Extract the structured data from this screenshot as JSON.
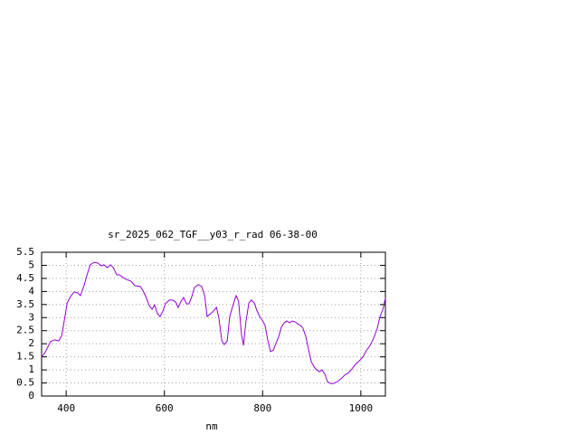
{
  "chart_data": {
    "type": "line",
    "title": "sr_2025_062_TGF__y03_r_rad 06-38-00",
    "x_label": "nm",
    "x": [
      350,
      357,
      368,
      376,
      385,
      391,
      396,
      402,
      409,
      416,
      424,
      429,
      437,
      442,
      449,
      457,
      464,
      472,
      477,
      484,
      490,
      496,
      503,
      508,
      516,
      523,
      532,
      540,
      551,
      556,
      562,
      569,
      575,
      580,
      586,
      591,
      597,
      602,
      610,
      617,
      623,
      628,
      634,
      639,
      645,
      650,
      656,
      661,
      669,
      676,
      682,
      687,
      694,
      700,
      706,
      711,
      717,
      722,
      728,
      733,
      741,
      746,
      751,
      757,
      761,
      766,
      772,
      777,
      783,
      788,
      794,
      799,
      805,
      810,
      816,
      822,
      827,
      833,
      838,
      844,
      849,
      855,
      860,
      866,
      871,
      877,
      882,
      888,
      893,
      899,
      905,
      910,
      916,
      921,
      927,
      932,
      938,
      945,
      952,
      960,
      967,
      974,
      982,
      989,
      997,
      1004,
      1011,
      1019,
      1026,
      1033,
      1039,
      1045,
      1050
    ],
    "series": [
      {
        "color": "#9400d3",
        "values": [
          1.49,
          1.66,
          2.08,
          2.15,
          2.11,
          2.32,
          2.87,
          3.56,
          3.81,
          3.98,
          3.94,
          3.84,
          4.26,
          4.6,
          5.02,
          5.12,
          5.09,
          4.98,
          5.02,
          4.91,
          5.02,
          4.91,
          4.64,
          4.64,
          4.53,
          4.46,
          4.39,
          4.22,
          4.19,
          4.05,
          3.81,
          3.46,
          3.32,
          3.49,
          3.15,
          3.04,
          3.25,
          3.53,
          3.67,
          3.67,
          3.6,
          3.39,
          3.63,
          3.77,
          3.53,
          3.53,
          3.81,
          4.15,
          4.26,
          4.19,
          3.84,
          3.04,
          3.15,
          3.25,
          3.39,
          2.98,
          2.11,
          1.97,
          2.11,
          3.04,
          3.56,
          3.84,
          3.63,
          2.35,
          1.94,
          2.84,
          3.56,
          3.67,
          3.56,
          3.29,
          3.04,
          2.91,
          2.7,
          2.18,
          1.7,
          1.76,
          2.01,
          2.28,
          2.63,
          2.8,
          2.87,
          2.8,
          2.87,
          2.84,
          2.77,
          2.7,
          2.6,
          2.28,
          1.83,
          1.31,
          1.11,
          1.0,
          0.93,
          1.0,
          0.83,
          0.55,
          0.48,
          0.48,
          0.55,
          0.66,
          0.8,
          0.87,
          1.04,
          1.21,
          1.35,
          1.49,
          1.73,
          1.94,
          2.21,
          2.56,
          3.04,
          3.32,
          3.74
        ]
      }
    ],
    "xlim": [
      350,
      1050
    ],
    "xticks": [
      400,
      600,
      800,
      1000
    ],
    "ylim": [
      0,
      5.5
    ],
    "yticks": [
      0,
      0.5,
      1,
      1.5,
      2,
      2.5,
      3,
      3.5,
      4,
      4.5,
      5,
      5.5
    ],
    "grid": true
  }
}
